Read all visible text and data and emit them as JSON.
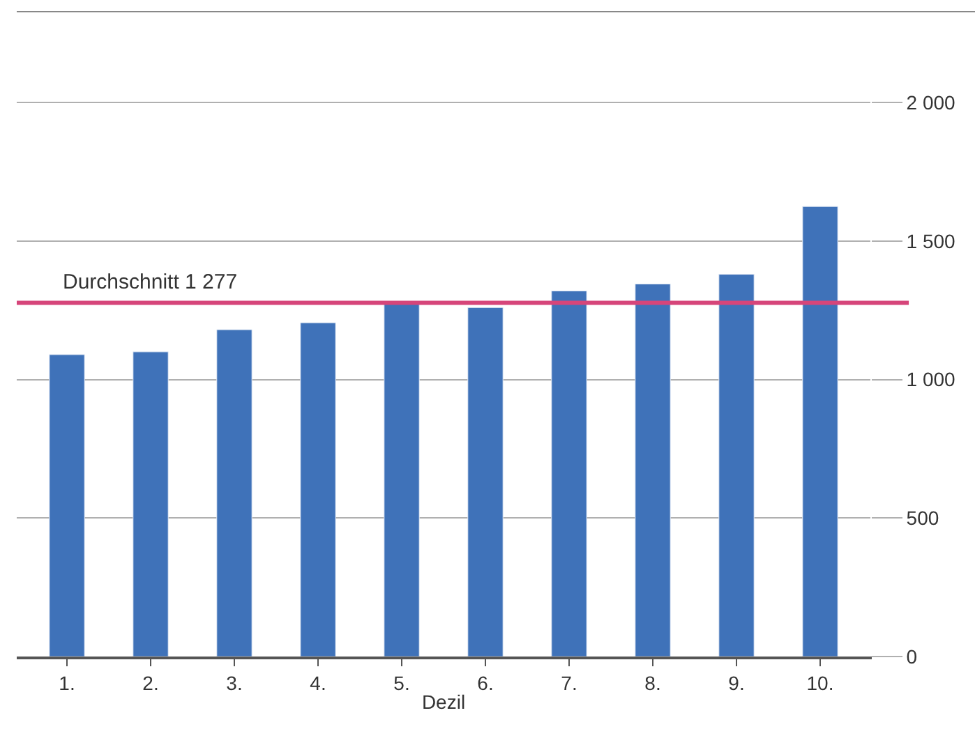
{
  "chart_data": {
    "type": "bar",
    "xlabel": "Dezil",
    "categories": [
      "1.",
      "2.",
      "3.",
      "4.",
      "5.",
      "6.",
      "7.",
      "8.",
      "9.",
      "10."
    ],
    "series": [
      {
        "color": "#3f72b9",
        "values": [
          1090,
          1100,
          1180,
          1205,
          1275,
          1260,
          1320,
          1345,
          1380,
          1625
        ]
      }
    ],
    "ylim": [
      0,
      2330
    ],
    "yticks": [
      {
        "value": 0,
        "label": "0"
      },
      {
        "value": 500,
        "label": "500"
      },
      {
        "value": 1000,
        "label": "1 000"
      },
      {
        "value": 1500,
        "label": "1 500"
      },
      {
        "value": 2000,
        "label": "2 000"
      }
    ],
    "grid": "y",
    "ref_lines": [
      {
        "axis": "y",
        "value": 1277,
        "label": "Durchschnitt 1 277",
        "color": "#d6457a"
      }
    ]
  }
}
